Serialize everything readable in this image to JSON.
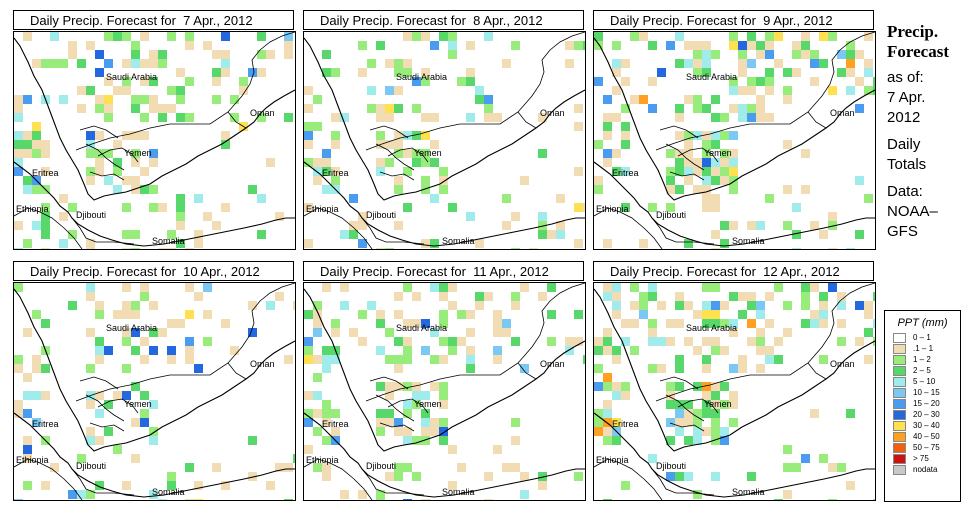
{
  "panels": [
    {
      "title": "Daily Precip. Forecast for  7 Apr., 2012",
      "seed": 7,
      "intensity": 0.55
    },
    {
      "title": "Daily Precip. Forecast for  8 Apr., 2012",
      "seed": 8,
      "intensity": 0.5
    },
    {
      "title": "Daily Precip. Forecast for  9 Apr., 2012",
      "seed": 9,
      "intensity": 0.85
    },
    {
      "title": "Daily Precip. Forecast for  10 Apr., 2012",
      "seed": 10,
      "intensity": 0.45
    },
    {
      "title": "Daily Precip. Forecast for  11 Apr., 2012",
      "seed": 11,
      "intensity": 0.75
    },
    {
      "title": "Daily Precip. Forecast for  12 Apr., 2012",
      "seed": 12,
      "intensity": 0.95
    }
  ],
  "map_labels": {
    "saudi_arabia": "Saudi Arabia",
    "oman": "Oman",
    "yemen": "Yemen",
    "eritrea": "Eritrea",
    "ethiopia": "Ethiopia",
    "djibouti": "Djibouti",
    "somalia": "Somalia"
  },
  "side": {
    "title_line1": "Precip.",
    "title_line2": "Forecast",
    "asof": "as of:",
    "date_line1": "7 Apr.",
    "date_line2": "2012",
    "daily_line1": "Daily",
    "daily_line2": "Totals",
    "data_line1": "Data:",
    "data_line2": "NOAA–",
    "data_line3": "GFS"
  },
  "legend": {
    "title": "PPT (mm)",
    "items": [
      {
        "label": "0 – 1",
        "color": "#ffffff"
      },
      {
        "label": ".1 – 1",
        "color": "#f2dcb4"
      },
      {
        "label": "1 – 2",
        "color": "#98ec7c"
      },
      {
        "label": "2 – 5",
        "color": "#58d86a"
      },
      {
        "label": "5 – 10",
        "color": "#a0ecea"
      },
      {
        "label": "10 – 15",
        "color": "#7cc8f4"
      },
      {
        "label": "15 – 20",
        "color": "#4a9cf0"
      },
      {
        "label": "20 – 30",
        "color": "#2468e0"
      },
      {
        "label": "30 – 40",
        "color": "#ffe050"
      },
      {
        "label": "40 – 50",
        "color": "#ffa020"
      },
      {
        "label": "50 – 75",
        "color": "#f06010"
      },
      {
        "label": "> 75",
        "color": "#d01010"
      },
      {
        "label": "nodata",
        "color": "#c8c8c8"
      }
    ]
  }
}
